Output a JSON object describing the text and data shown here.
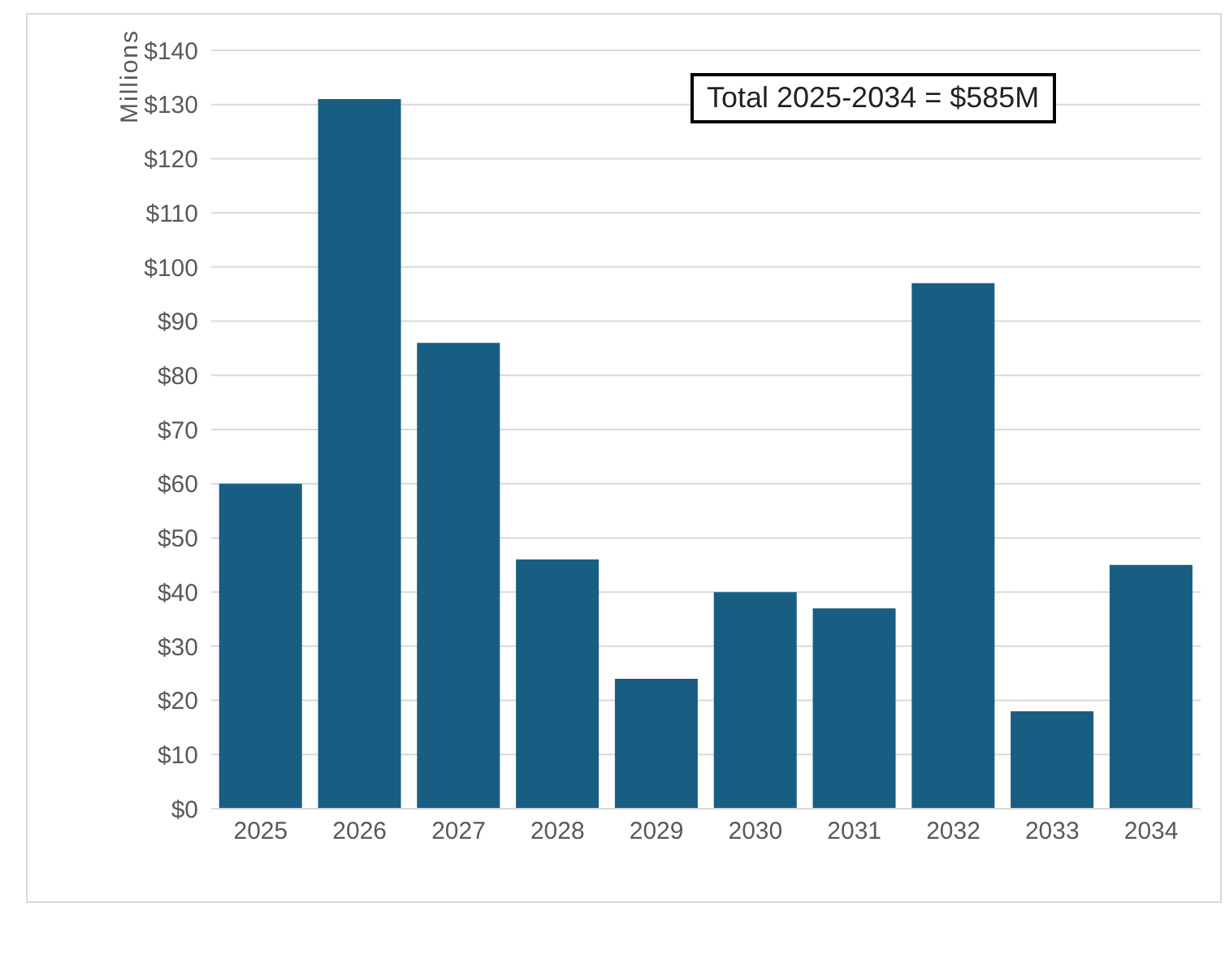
{
  "chart_data": {
    "type": "bar",
    "ylabel": "Millions",
    "annotations": [
      "Total 2025-2034 = $585M"
    ],
    "categories": [
      "2025",
      "2026",
      "2027",
      "2028",
      "2029",
      "2030",
      "2031",
      "2032",
      "2033",
      "2034"
    ],
    "values": [
      60,
      131,
      86,
      46,
      24,
      40,
      37,
      97,
      18,
      45
    ],
    "color": "#175e82",
    "ylim": [
      0,
      140
    ],
    "yticks": [
      {
        "value": 0,
        "label": "$0"
      },
      {
        "value": 10,
        "label": "$10"
      },
      {
        "value": 20,
        "label": "$20"
      },
      {
        "value": 30,
        "label": "$30"
      },
      {
        "value": 40,
        "label": "$40"
      },
      {
        "value": 50,
        "label": "$50"
      },
      {
        "value": 60,
        "label": "$60"
      },
      {
        "value": 70,
        "label": "$70"
      },
      {
        "value": 80,
        "label": "$80"
      },
      {
        "value": 90,
        "label": "$90"
      },
      {
        "value": 100,
        "label": "$100"
      },
      {
        "value": 110,
        "label": "$110"
      },
      {
        "value": 120,
        "label": "$120"
      },
      {
        "value": 130,
        "label": "$130"
      },
      {
        "value": 140,
        "label": "$140"
      }
    ],
    "grid": "y"
  }
}
